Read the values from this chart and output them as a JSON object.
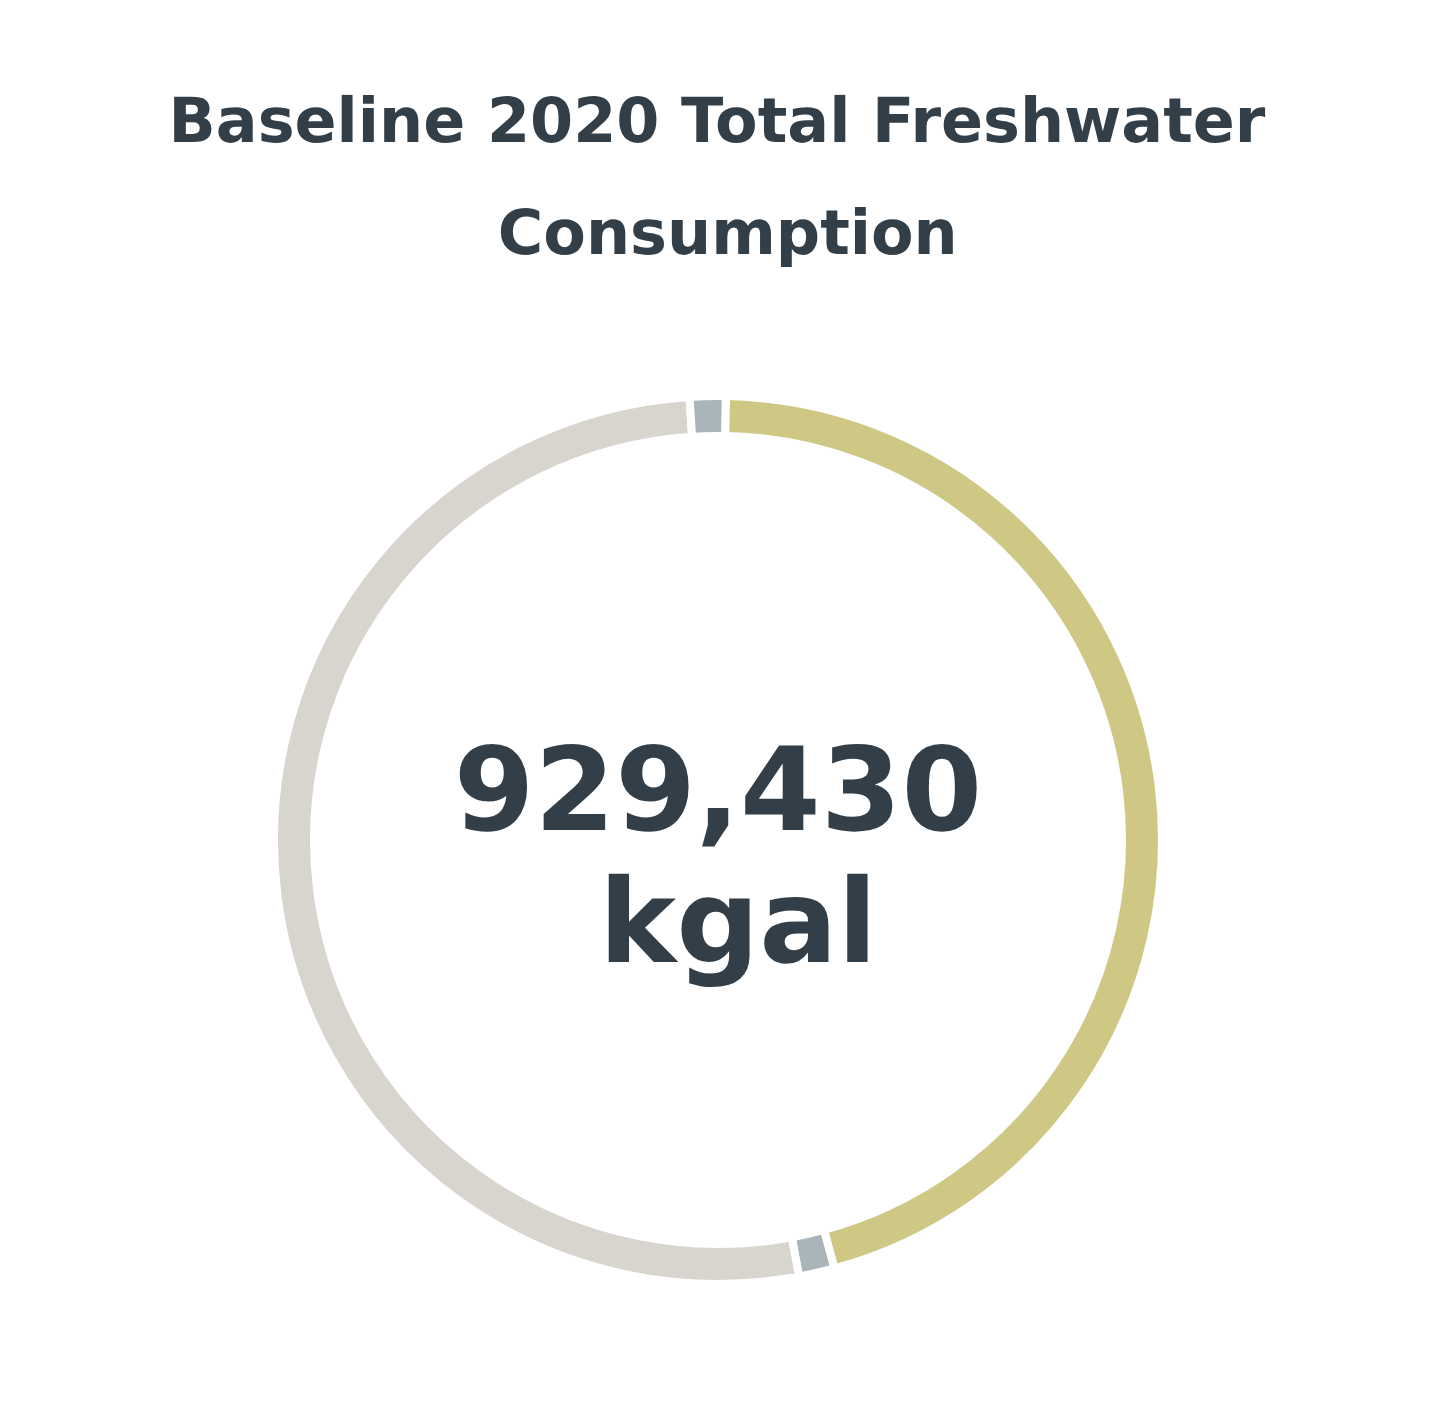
{
  "chart_data": {
    "type": "donut",
    "title": "Baseline 2020 Total Freshwater Consumption",
    "categories": [
      null,
      null,
      null,
      null
    ],
    "values": [
      45.5,
      1.3,
      51.9,
      1.3
    ],
    "colors": [
      "#cfc885",
      "#a9b5b8",
      "#d8d4ce",
      "#a9b5b8"
    ],
    "annotations": [
      "929,430 kgal"
    ]
  }
}
